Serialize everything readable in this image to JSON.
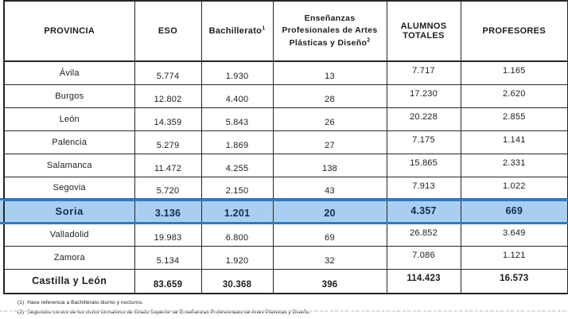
{
  "table": {
    "columns": [
      {
        "label": "PROVINCIA",
        "sup": ""
      },
      {
        "label": "ESO",
        "sup": ""
      },
      {
        "label": "Bachillerato",
        "sup": "1"
      },
      {
        "label": "Enseñanzas Profesionales de Artes Plásticas y Diseño",
        "sup": "2"
      },
      {
        "label": "ALUMNOS TOTALES",
        "sup": ""
      },
      {
        "label": "PROFESORES",
        "sup": ""
      }
    ],
    "rows": [
      {
        "name": "Ávila",
        "values": [
          "5.774",
          "1.930",
          "13",
          "7.717",
          "1.165"
        ]
      },
      {
        "name": "Burgos",
        "values": [
          "12.802",
          "4.400",
          "28",
          "17.230",
          "2.620"
        ]
      },
      {
        "name": "León",
        "values": [
          "14.359",
          "5.843",
          "26",
          "20.228",
          "2.855"
        ]
      },
      {
        "name": "Palencia",
        "values": [
          "5.279",
          "1.869",
          "27",
          "7.175",
          "1.141"
        ]
      },
      {
        "name": "Salamanca",
        "values": [
          "11.472",
          "4.255",
          "138",
          "15.865",
          "2.331"
        ]
      },
      {
        "name": "Segovia",
        "values": [
          "5.720",
          "2.150",
          "43",
          "7.913",
          "1.022"
        ]
      },
      {
        "name": "Soria",
        "values": [
          "3.136",
          "1.201",
          "20",
          "4.357",
          "669"
        ]
      },
      {
        "name": "Valladolid",
        "values": [
          "19.983",
          "6.800",
          "69",
          "26.852",
          "3.649"
        ]
      },
      {
        "name": "Zamora",
        "values": [
          "5.134",
          "1.920",
          "32",
          "7.086",
          "1.121"
        ]
      }
    ],
    "total_row": {
      "name": "Castilla y León",
      "values": [
        "83.659",
        "30.368",
        "396",
        "114.423",
        "16.573"
      ]
    },
    "highlighted_row": "Soria"
  },
  "footnotes": [
    {
      "marker": "(1)",
      "text": "Hace referencia a Bachillerato diurno y nocturno."
    },
    {
      "marker": "(2)",
      "text": "Segundos cursos de los ciclos formativos de Grado Superior de Enseñanzas Profesionales de Artes Plásticas y Diseño."
    }
  ],
  "colors": {
    "highlight_bg": "#A9CFF0",
    "highlight_border": "#3579BE",
    "table_border": "#262626"
  }
}
